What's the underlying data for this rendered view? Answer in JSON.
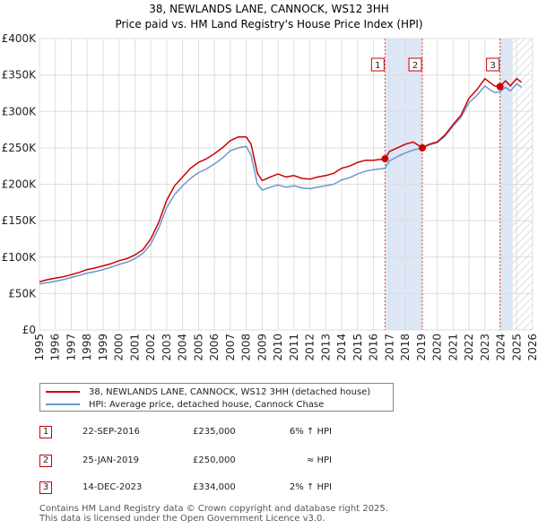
{
  "chart_data": {
    "type": "line",
    "title": "38, NEWLANDS LANE, CANNOCK, WS12 3HH",
    "subtitle": "Price paid vs. HM Land Registry's House Price Index (HPI)",
    "x_range": [
      1995,
      2026
    ],
    "ylim": [
      0,
      400000
    ],
    "x_ticks": [
      "1995",
      "1996",
      "1997",
      "1998",
      "1999",
      "2000",
      "2001",
      "2002",
      "2003",
      "2004",
      "2005",
      "2006",
      "2007",
      "2008",
      "2009",
      "2010",
      "2011",
      "2012",
      "2013",
      "2014",
      "2015",
      "2016",
      "2017",
      "2018",
      "2019",
      "2020",
      "2021",
      "2022",
      "2023",
      "2024",
      "2025",
      "2026"
    ],
    "y_ticks": [
      {
        "value": 0,
        "label": "£0"
      },
      {
        "value": 50000,
        "label": "£50K"
      },
      {
        "value": 100000,
        "label": "£100K"
      },
      {
        "value": 150000,
        "label": "£150K"
      },
      {
        "value": 200000,
        "label": "£200K"
      },
      {
        "value": 250000,
        "label": "£250K"
      },
      {
        "value": 300000,
        "label": "£300K"
      },
      {
        "value": 350000,
        "label": "£350K"
      },
      {
        "value": 400000,
        "label": "£400K"
      }
    ],
    "grid": true,
    "series": [
      {
        "name": "38, NEWLANDS LANE, CANNOCK, WS12 3HH (detached house)",
        "color": "#cc0000",
        "x": [
          1995,
          1995.5,
          1996,
          1996.5,
          1997,
          1997.5,
          1998,
          1998.5,
          1999,
          1999.5,
          2000,
          2000.5,
          2001,
          2001.5,
          2002,
          2002.5,
          2003,
          2003.5,
          2004,
          2004.5,
          2005,
          2005.5,
          2006,
          2006.5,
          2007,
          2007.5,
          2008,
          2008.3,
          2008.7,
          2009,
          2009.5,
          2010,
          2010.5,
          2011,
          2011.5,
          2012,
          2012.5,
          2013,
          2013.5,
          2014,
          2014.5,
          2015,
          2015.5,
          2016,
          2016.72,
          2017,
          2017.5,
          2018,
          2018.5,
          2019.07,
          2019.5,
          2020,
          2020.5,
          2021,
          2021.5,
          2022,
          2022.5,
          2023,
          2023.3,
          2023.6,
          2023.95,
          2024.3,
          2024.6,
          2025,
          2025.3
        ],
        "values": [
          66000,
          69000,
          71000,
          73000,
          76000,
          79000,
          83000,
          85000,
          88000,
          91000,
          95000,
          98000,
          103000,
          110000,
          125000,
          148000,
          178000,
          198000,
          210000,
          222000,
          230000,
          235000,
          242000,
          250000,
          260000,
          265000,
          265000,
          255000,
          215000,
          205000,
          210000,
          214000,
          210000,
          212000,
          208000,
          207000,
          210000,
          212000,
          215000,
          222000,
          225000,
          230000,
          233000,
          233000,
          235000,
          245000,
          250000,
          255000,
          258000,
          250000,
          255000,
          258000,
          268000,
          282000,
          295000,
          318000,
          330000,
          345000,
          340000,
          335000,
          334000,
          342000,
          335000,
          345000,
          340000
        ]
      },
      {
        "name": "HPI: Average price, detached house, Cannock Chase",
        "color": "#6a97cf",
        "x": [
          1995,
          1995.5,
          1996,
          1996.5,
          1997,
          1997.5,
          1998,
          1998.5,
          1999,
          1999.5,
          2000,
          2000.5,
          2001,
          2001.5,
          2002,
          2002.5,
          2003,
          2003.5,
          2004,
          2004.5,
          2005,
          2005.5,
          2006,
          2006.5,
          2007,
          2007.5,
          2008,
          2008.3,
          2008.7,
          2009,
          2009.5,
          2010,
          2010.5,
          2011,
          2011.5,
          2012,
          2012.5,
          2013,
          2013.5,
          2014,
          2014.5,
          2015,
          2015.5,
          2016,
          2016.72,
          2017,
          2017.5,
          2018,
          2018.5,
          2019.07,
          2019.5,
          2020,
          2020.5,
          2021,
          2021.5,
          2022,
          2022.5,
          2023,
          2023.3,
          2023.6,
          2023.95,
          2024.3,
          2024.6,
          2025,
          2025.3
        ],
        "values": [
          63000,
          65000,
          67000,
          69000,
          72000,
          75000,
          78000,
          80000,
          83000,
          86000,
          90000,
          93000,
          98000,
          105000,
          118000,
          140000,
          168000,
          186000,
          198000,
          208000,
          216000,
          221000,
          228000,
          236000,
          246000,
          250000,
          252000,
          240000,
          200000,
          192000,
          196000,
          199000,
          196000,
          198000,
          195000,
          194000,
          196000,
          198000,
          200000,
          206000,
          209000,
          214000,
          218000,
          220000,
          222000,
          232000,
          238000,
          243000,
          247000,
          250000,
          254000,
          257000,
          266000,
          280000,
          292000,
          312000,
          322000,
          335000,
          330000,
          326000,
          327000,
          333000,
          328000,
          338000,
          333000
        ]
      }
    ],
    "sales": [
      {
        "id": "1",
        "date": "22-SEP-2016",
        "x": 2016.72,
        "price": 235000,
        "price_label": "£235,000",
        "hpi": "6% ↑ HPI"
      },
      {
        "id": "2",
        "date": "25-JAN-2019",
        "x": 2019.07,
        "price": 250000,
        "price_label": "£250,000",
        "hpi": "≈ HPI"
      },
      {
        "id": "3",
        "date": "14-DEC-2023",
        "x": 2023.95,
        "price": 334000,
        "price_label": "£334,000",
        "hpi": "2% ↑ HPI"
      }
    ],
    "shaded_ranges": [
      [
        2016.72,
        2019.07
      ],
      [
        2023.95,
        2024.75
      ]
    ],
    "hatched_range": [
      2024.75,
      2026
    ]
  },
  "colors": {
    "property": "#cc0000",
    "hpi": "#6a97cf",
    "shade": "#dde7f5",
    "grid": "#dddddd",
    "marker_line": "#cc0000"
  },
  "footer": {
    "line1": "Contains HM Land Registry data © Crown copyright and database right 2025.",
    "line2": "This data is licensed under the Open Government Licence v3.0."
  }
}
